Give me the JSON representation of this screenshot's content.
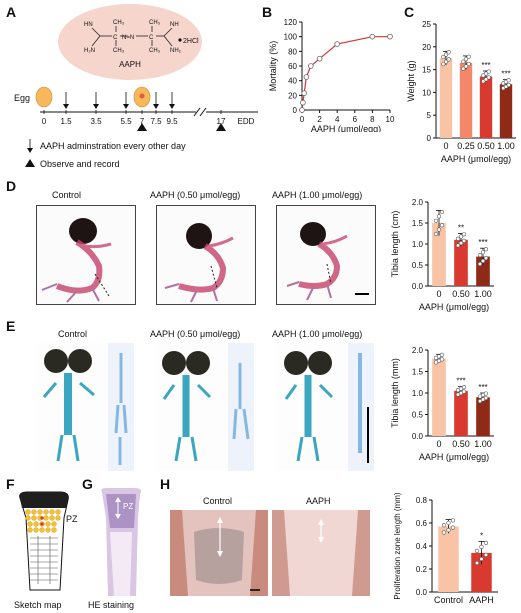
{
  "panels": {
    "A": "A",
    "B": "B",
    "C": "C",
    "D": "D",
    "E": "E",
    "F": "F",
    "G": "G",
    "H": "H"
  },
  "panelA": {
    "compound_name": "AAPH",
    "salt": "2HCl",
    "egg_label": "Egg",
    "timeline_ticks": [
      "0",
      "1.5",
      "3.5",
      "5.5",
      "7",
      "7.5",
      "9.5",
      "17",
      "EDD"
    ],
    "legend_arrow": "AAPH adminstration every other day",
    "legend_triangle": "Observe and record",
    "colors": {
      "ellipse": "#f6d5cc",
      "egg": "#f6b85a"
    }
  },
  "panelB": {
    "chart_data": {
      "type": "line",
      "ylabel": "Mortality (%)",
      "xlabel": "AAPH (μmol/egg)",
      "x": [
        0,
        0.1,
        0.25,
        0.5,
        1,
        2,
        4,
        8,
        10
      ],
      "y": [
        0,
        10,
        23,
        45,
        60,
        70,
        90,
        100,
        100
      ],
      "xticks": [
        "0",
        "2",
        "4",
        "6",
        "8",
        "10"
      ],
      "yticks": [
        "0",
        "20",
        "40",
        "60",
        "80",
        "100",
        "120"
      ],
      "xlim": [
        0,
        10
      ],
      "ylim": [
        0,
        120
      ],
      "color": "#d9342b"
    }
  },
  "panelC": {
    "chart_data": {
      "type": "bar",
      "ylabel": "Weight (g)",
      "xlabel": "AAPH (μmol/egg)",
      "categories": [
        "0",
        "0.25",
        "0.50",
        "1.00"
      ],
      "values": [
        17.5,
        16.5,
        13.5,
        11.8
      ],
      "errors": [
        1.5,
        1.5,
        1.2,
        1.0
      ],
      "sig": [
        "",
        "",
        "***",
        "***"
      ],
      "yticks": [
        "0",
        "5",
        "10",
        "15",
        "20",
        "25"
      ],
      "ylim": [
        0,
        25
      ],
      "colors": [
        "#f9c3a6",
        "#f4866a",
        "#d93a2f",
        "#8f2a17"
      ]
    }
  },
  "panelD": {
    "titles": [
      "Control",
      "AAPH (0.50 μmol/egg)",
      "AAPH (1.00 μmol/egg)"
    ],
    "chart_data": {
      "type": "bar",
      "ylabel": "Tibia length (cm)",
      "xlabel": "AAPH (μmol/egg)",
      "categories": [
        "0",
        "0.50",
        "1.00"
      ],
      "values": [
        1.5,
        1.1,
        0.7
      ],
      "errors": [
        0.3,
        0.15,
        0.2
      ],
      "sig": [
        "",
        "**",
        "***"
      ],
      "yticks": [
        "0.0",
        "0.5",
        "1.0",
        "1.5",
        "2.0"
      ],
      "ylim": [
        0,
        2.0
      ],
      "colors": [
        "#f9c3a6",
        "#d93a2f",
        "#8f2a17"
      ]
    }
  },
  "panelE": {
    "titles": [
      "Control",
      "AAPH (0.50 μmol/egg)",
      "AAPH (1.00 μmol/egg)"
    ],
    "chart_data": {
      "type": "bar",
      "ylabel": "Tibia length (mm)",
      "xlabel": "AAPH (μmol/egg)",
      "categories": [
        "0",
        "0.50",
        "1.00"
      ],
      "values": [
        1.8,
        1.05,
        0.9
      ],
      "errors": [
        0.1,
        0.1,
        0.1
      ],
      "sig": [
        "",
        "***",
        "***"
      ],
      "yticks": [
        "0.0",
        "0.5",
        "1.0",
        "1.5",
        "2.0"
      ],
      "ylim": [
        0,
        2.0
      ],
      "colors": [
        "#f9c3a6",
        "#d93a2f",
        "#8f2a17"
      ]
    }
  },
  "panelF": {
    "label": "PZ",
    "caption": "Sketch map"
  },
  "panelG": {
    "label": "PZ",
    "caption": "HE staining"
  },
  "panelH": {
    "titles": [
      "Control",
      "AAPH"
    ],
    "chart_data": {
      "type": "bar",
      "ylabel": "Proliferation zone length (mm)",
      "categories": [
        "Control",
        "AAPH"
      ],
      "values": [
        0.57,
        0.34
      ],
      "errors": [
        0.06,
        0.1
      ],
      "sig": [
        "",
        "*"
      ],
      "yticks": [
        "0.0",
        "0.2",
        "0.4",
        "0.6",
        "0.8"
      ],
      "ylim": [
        0,
        0.8
      ],
      "colors": [
        "#f9c3a6",
        "#d93a2f"
      ]
    }
  }
}
